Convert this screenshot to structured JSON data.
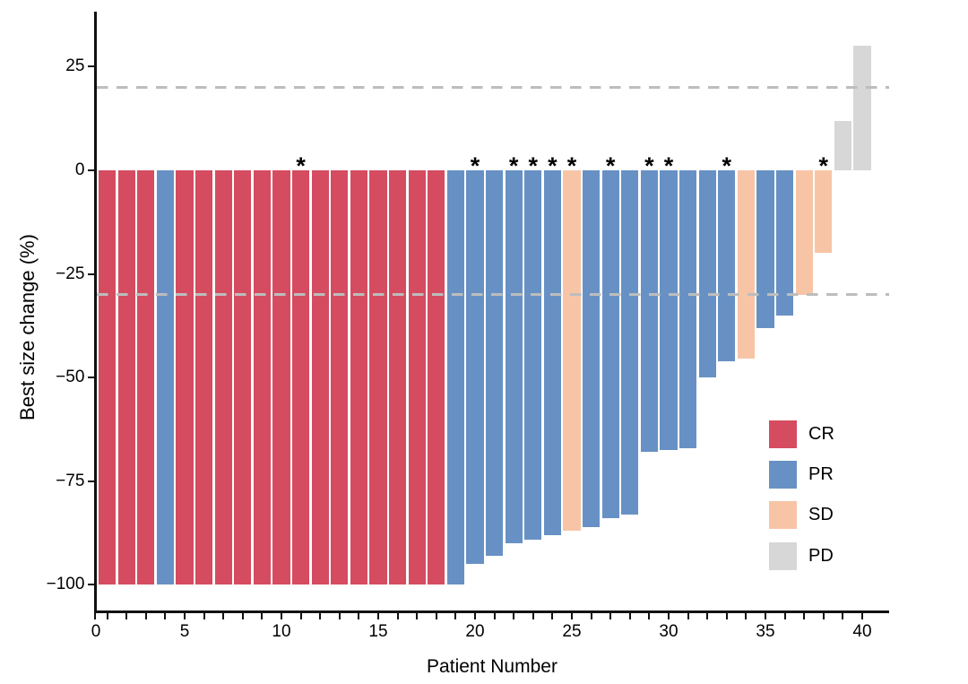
{
  "chart_data": {
    "type": "bar",
    "title": "",
    "xlabel": "Patient Number",
    "ylabel": "Best size change (%)",
    "xlim": [
      0,
      41
    ],
    "ylim": [
      -106,
      38
    ],
    "grid": false,
    "x_tick_labels": [
      {
        "x": 0,
        "label": "0"
      },
      {
        "x": 5,
        "label": "5"
      },
      {
        "x": 10,
        "label": "10"
      },
      {
        "x": 15,
        "label": "15"
      },
      {
        "x": 20,
        "label": "20"
      },
      {
        "x": 25,
        "label": "25"
      },
      {
        "x": 30,
        "label": "30"
      },
      {
        "x": 35,
        "label": "35"
      },
      {
        "x": 40,
        "label": "40"
      }
    ],
    "x_minor_tick_every": 1,
    "y_ticks": [
      {
        "v": 25,
        "label": "25"
      },
      {
        "v": 0,
        "label": "0"
      },
      {
        "v": -25,
        "label": "−25"
      },
      {
        "v": -50,
        "label": "−50"
      },
      {
        "v": -75,
        "label": "−75"
      },
      {
        "v": -100,
        "label": "−100"
      }
    ],
    "reference_lines": [
      {
        "y": 20,
        "style": "dashed",
        "color": "#BDBDBD"
      },
      {
        "y": -30,
        "style": "dashed",
        "color": "#BDBDBD"
      }
    ],
    "colors": {
      "CR": "#D54C60",
      "PR": "#6791C4",
      "SD": "#F7C5A6",
      "PD": "#D7D7D7"
    },
    "legend": {
      "position": "right-middle",
      "entries": [
        {
          "label": "CR",
          "color": "#D54C60"
        },
        {
          "label": "PR",
          "color": "#6791C4"
        },
        {
          "label": "SD",
          "color": "#F7C5A6"
        },
        {
          "label": "PD",
          "color": "#D7D7D7"
        }
      ]
    },
    "annotation_symbol": "*",
    "points": [
      {
        "patient": 1,
        "response": "CR",
        "value": -100,
        "star": false
      },
      {
        "patient": 2,
        "response": "CR",
        "value": -100,
        "star": false
      },
      {
        "patient": 3,
        "response": "CR",
        "value": -100,
        "star": false
      },
      {
        "patient": 4,
        "response": "PR",
        "value": -100,
        "star": false
      },
      {
        "patient": 5,
        "response": "CR",
        "value": -100,
        "star": false
      },
      {
        "patient": 6,
        "response": "CR",
        "value": -100,
        "star": false
      },
      {
        "patient": 7,
        "response": "CR",
        "value": -100,
        "star": false
      },
      {
        "patient": 8,
        "response": "CR",
        "value": -100,
        "star": false
      },
      {
        "patient": 9,
        "response": "CR",
        "value": -100,
        "star": false
      },
      {
        "patient": 10,
        "response": "CR",
        "value": -100,
        "star": false
      },
      {
        "patient": 11,
        "response": "CR",
        "value": -100,
        "star": true
      },
      {
        "patient": 12,
        "response": "CR",
        "value": -100,
        "star": false
      },
      {
        "patient": 13,
        "response": "CR",
        "value": -100,
        "star": false
      },
      {
        "patient": 14,
        "response": "CR",
        "value": -100,
        "star": false
      },
      {
        "patient": 15,
        "response": "CR",
        "value": -100,
        "star": false
      },
      {
        "patient": 16,
        "response": "CR",
        "value": -100,
        "star": false
      },
      {
        "patient": 17,
        "response": "CR",
        "value": -100,
        "star": false
      },
      {
        "patient": 18,
        "response": "CR",
        "value": -100,
        "star": false
      },
      {
        "patient": 19,
        "response": "PR",
        "value": -100,
        "star": false
      },
      {
        "patient": 20,
        "response": "PR",
        "value": -95,
        "star": true
      },
      {
        "patient": 21,
        "response": "PR",
        "value": -93,
        "star": false
      },
      {
        "patient": 22,
        "response": "PR",
        "value": -90,
        "star": true
      },
      {
        "patient": 23,
        "response": "PR",
        "value": -89,
        "star": true
      },
      {
        "patient": 24,
        "response": "PR",
        "value": -88,
        "star": true
      },
      {
        "patient": 25,
        "response": "SD",
        "value": -87,
        "star": true
      },
      {
        "patient": 26,
        "response": "PR",
        "value": -86,
        "star": false
      },
      {
        "patient": 27,
        "response": "PR",
        "value": -84,
        "star": true
      },
      {
        "patient": 28,
        "response": "PR",
        "value": -83,
        "star": false
      },
      {
        "patient": 29,
        "response": "PR",
        "value": -68,
        "star": true
      },
      {
        "patient": 30,
        "response": "PR",
        "value": -67.5,
        "star": true
      },
      {
        "patient": 31,
        "response": "PR",
        "value": -67,
        "star": false
      },
      {
        "patient": 32,
        "response": "PR",
        "value": -50,
        "star": false
      },
      {
        "patient": 33,
        "response": "PR",
        "value": -46,
        "star": true
      },
      {
        "patient": 34,
        "response": "SD",
        "value": -45.5,
        "star": false
      },
      {
        "patient": 35,
        "response": "PR",
        "value": -38,
        "star": false
      },
      {
        "patient": 36,
        "response": "PR",
        "value": -35,
        "star": false
      },
      {
        "patient": 37,
        "response": "SD",
        "value": -30,
        "star": false
      },
      {
        "patient": 38,
        "response": "SD",
        "value": -20,
        "star": true
      },
      {
        "patient": 39,
        "response": "PD",
        "value": 12,
        "star": false
      },
      {
        "patient": 40,
        "response": "PD",
        "value": 30,
        "star": false
      }
    ]
  }
}
